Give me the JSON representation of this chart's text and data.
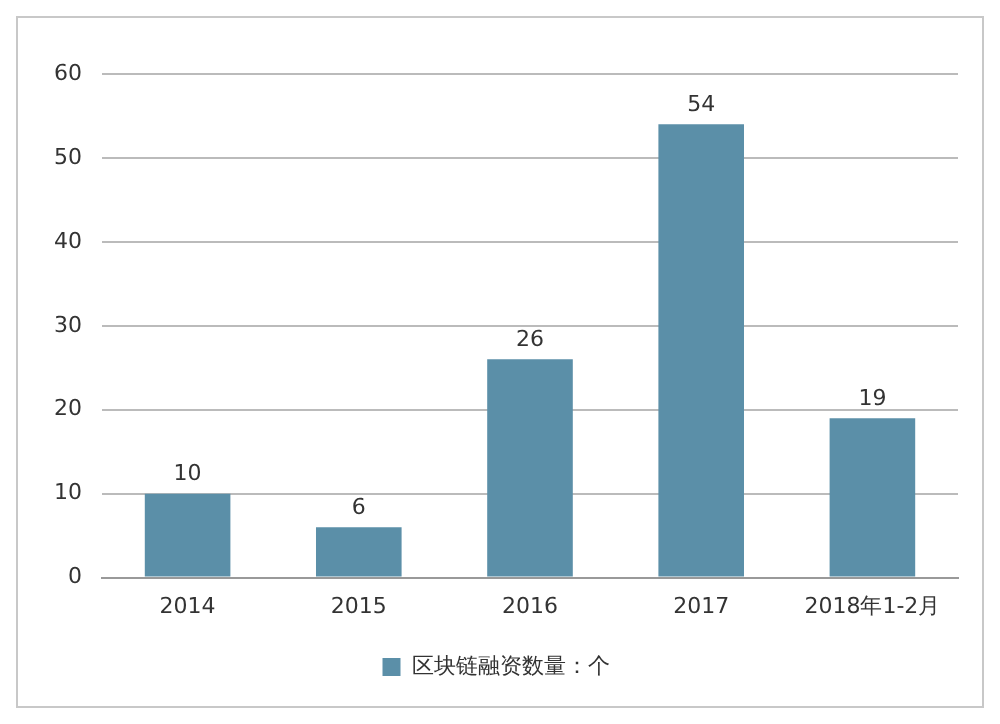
{
  "chart_data": {
    "type": "bar",
    "categories": [
      "2014",
      "2015",
      "2016",
      "2017",
      "2018年1-2月"
    ],
    "series": [
      {
        "name": "区块链融资数量：个",
        "color": "#5b8fa8",
        "values": [
          10,
          6,
          26,
          54,
          19
        ]
      }
    ],
    "ylim": [
      0,
      60
    ],
    "yticks": [
      0,
      10,
      20,
      30,
      40,
      50,
      60
    ],
    "grid": "y",
    "legend": "bottom",
    "data_labels": true
  }
}
